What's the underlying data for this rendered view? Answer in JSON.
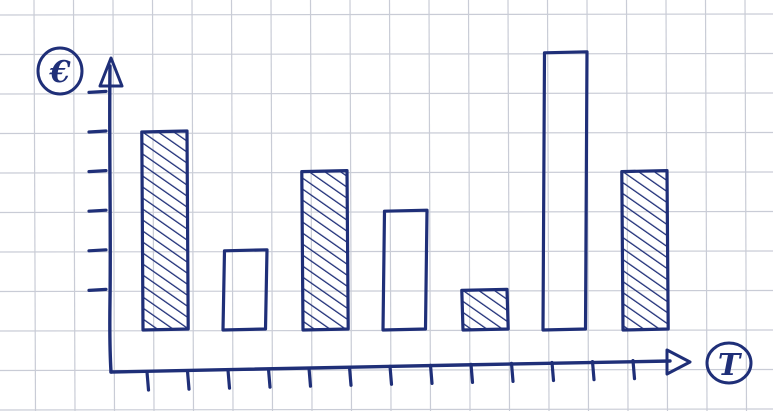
{
  "chart_data": {
    "type": "bar",
    "style": "hand-drawn sketch on grid paper",
    "ylabel": "€",
    "xlabel": "T",
    "ylim": [
      0,
      7
    ],
    "x_tick_count": 13,
    "y_tick_count": 6,
    "grid": true,
    "values": [
      5,
      2,
      4,
      3,
      1,
      7,
      4
    ],
    "hatched": [
      true,
      false,
      true,
      false,
      true,
      false,
      true
    ]
  },
  "colors": {
    "ink": "#1f2f78",
    "grid": "#c9ccd6",
    "paper": "#ffffff"
  }
}
